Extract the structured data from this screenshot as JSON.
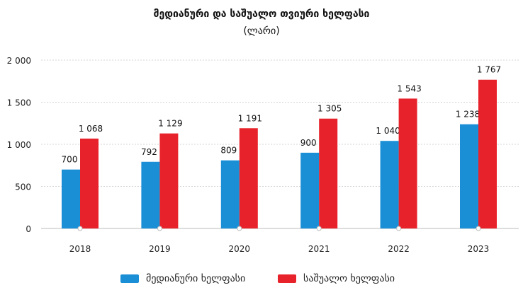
{
  "chart_data": {
    "type": "bar",
    "title": "მედიანური და საშუალო თვიური ხელფასი",
    "subtitle": "(ლარი)",
    "categories": [
      "2018",
      "2019",
      "2020",
      "2021",
      "2022",
      "2023"
    ],
    "series": [
      {
        "name": "მედიანური ხელფასი",
        "color": "#1a8fd6",
        "values": [
          700,
          792,
          809,
          900,
          1040,
          1238
        ],
        "labels": [
          "700",
          "792",
          "809",
          "900",
          "1 040",
          "1 238"
        ]
      },
      {
        "name": "საშუალო ხელფასი",
        "color": "#e8222b",
        "values": [
          1068,
          1129,
          1191,
          1305,
          1543,
          1767
        ],
        "labels": [
          "1 068",
          "1 129",
          "1 191",
          "1 305",
          "1 543",
          "1 767"
        ]
      }
    ],
    "yticks": [
      0,
      500,
      1000,
      1500,
      2000
    ],
    "ytick_labels": [
      "0",
      "500",
      "1 000",
      "1 500",
      "2 000"
    ],
    "ylim": [
      0,
      2000
    ],
    "grid": true,
    "legend_position": "bottom"
  }
}
